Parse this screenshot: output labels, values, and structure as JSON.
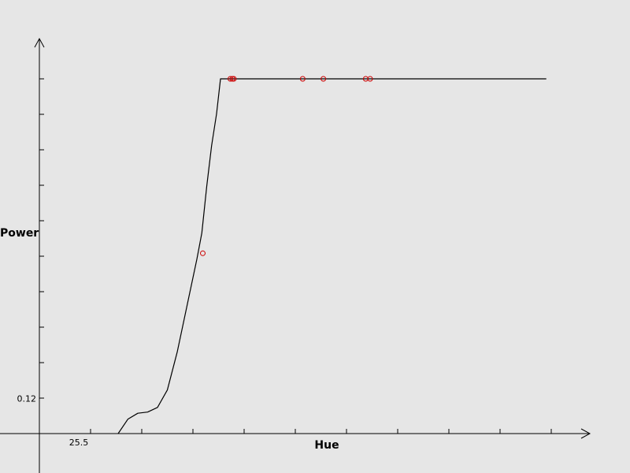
{
  "chart_data": {
    "type": "line",
    "title": "",
    "xlabel": "Hue",
    "ylabel": "Power",
    "x_tick_labels": [
      {
        "value": 25.5,
        "label": "25.5"
      }
    ],
    "y_tick_labels": [
      {
        "value": 0.12,
        "label": "0.12"
      }
    ],
    "xlim": [
      24.7,
      35.1
    ],
    "ylim": [
      0.0,
      1.22
    ],
    "grid": false,
    "series": [
      {
        "kind": "line",
        "x": [
          26.3,
          26.5,
          26.7,
          26.9,
          27.1,
          27.3,
          27.5,
          27.7,
          27.9,
          28.0,
          28.1,
          28.2,
          28.3,
          28.38,
          30.0,
          35.0
        ],
        "y": [
          0.0,
          0.05,
          0.07,
          0.074,
          0.09,
          0.15,
          0.28,
          0.44,
          0.6,
          0.69,
          0.85,
          0.99,
          1.1,
          1.22,
          1.22,
          1.22
        ]
      },
      {
        "kind": "scatter",
        "color": "#cc0000",
        "x": [
          28.02,
          28.58,
          28.62,
          28.65,
          30.05,
          30.47,
          31.33,
          31.42
        ],
        "y": [
          0.62,
          1.22,
          1.22,
          1.22,
          1.22,
          1.22,
          1.22,
          1.22
        ]
      }
    ]
  }
}
